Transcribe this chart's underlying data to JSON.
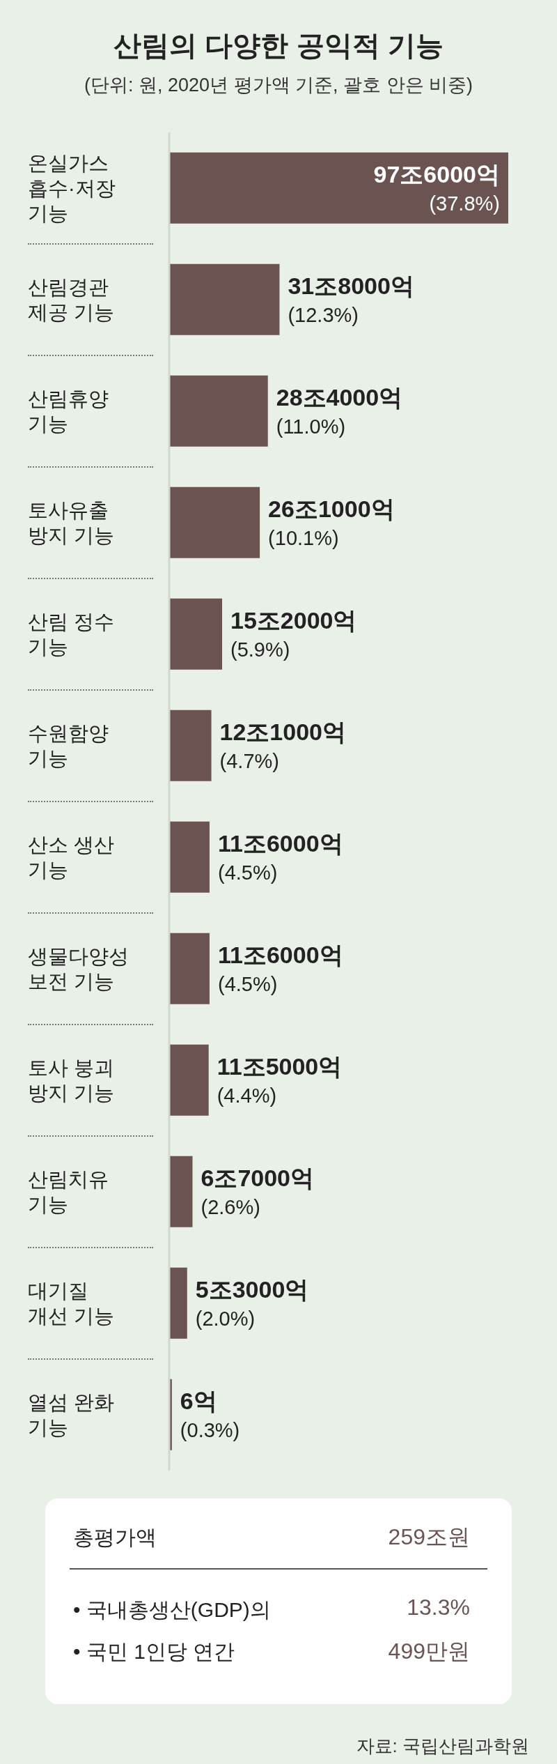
{
  "chart_data": {
    "type": "bar",
    "orientation": "horizontal",
    "title": "산림의 다양한 공익적 기능",
    "subtitle": "(단위: 원, 2020년 평가액 기준, 괄호 안은 비중)",
    "categories": [
      "온실가스 흡수·저장 기능",
      "산림경관 제공 기능",
      "산림휴양 기능",
      "토사유출 방지 기능",
      "산림 정수 기능",
      "수원함양 기능",
      "산소 생산 기능",
      "생물다양성 보전 기능",
      "토사 붕괴 방지 기능",
      "산림치유 기능",
      "대기질 개선 기능",
      "열섬 완화 기능"
    ],
    "values": [
      37.8,
      12.3,
      11.0,
      10.1,
      5.9,
      4.7,
      4.5,
      4.5,
      4.4,
      2.6,
      2.0,
      0.3
    ],
    "value_labels": [
      "97조6000억 (37.8%)",
      "31조8000억 (12.3%)",
      "28조4000억 (11.0%)",
      "26조1000억 (10.1%)",
      "15조2000억 (5.9%)",
      "12조1000억 (4.7%)",
      "11조6000억 (4.5%)",
      "11조6000억 (4.5%)",
      "11조5000억 (4.4%)",
      "6조7000억 (2.6%)",
      "5조3000억 (2.0%)",
      "6억 (0.3%)"
    ],
    "color": "#6b5352",
    "annotations": [
      "총평가액",
      "259조원",
      "• 국내총생산(GDP)의",
      "13.3%",
      "• 국민 1인당 연간",
      "499만원",
      "자료: 국립산림과학원"
    ]
  }
}
